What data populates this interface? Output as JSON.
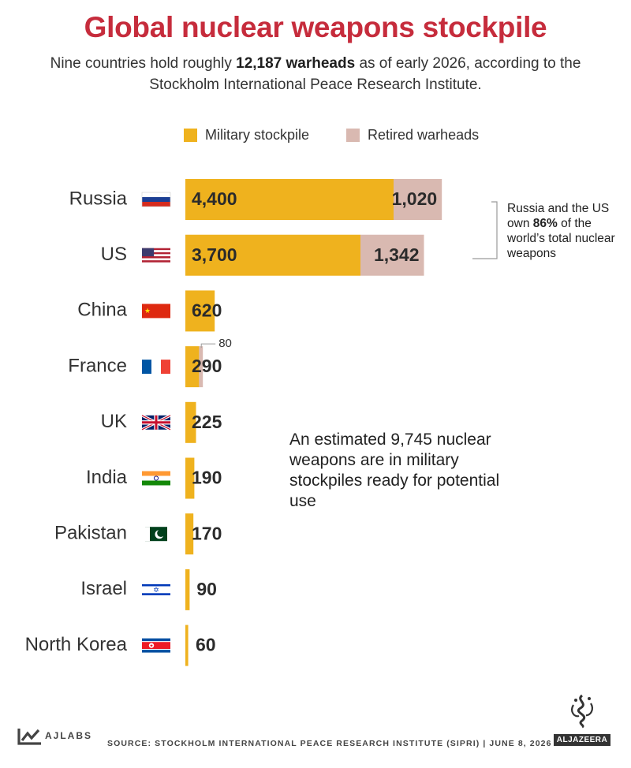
{
  "header": {
    "title": "Global nuclear weapons stockpile",
    "subtitle_prefix": "Nine countries hold roughly ",
    "subtitle_bold": "12,187 warheads",
    "subtitle_suffix": " as of early 2026, according to the Stockholm International Peace Research Institute."
  },
  "legend": {
    "military_label": "Military stockpile",
    "retired_label": "Retired warheads"
  },
  "colors": {
    "title": "#c62c3c",
    "military": "#efb21e",
    "retired": "#d9b9b1",
    "text": "#2b2b2b"
  },
  "chart_data": {
    "type": "bar",
    "orientation": "horizontal",
    "stacked": true,
    "categories": [
      "Russia",
      "US",
      "China",
      "France",
      "UK",
      "India",
      "Pakistan",
      "Israel",
      "North Korea"
    ],
    "flags": [
      "russia-flag",
      "us-flag",
      "china-flag",
      "france-flag",
      "uk-flag",
      "india-flag",
      "pakistan-flag",
      "israel-flag",
      "north-korea-flag"
    ],
    "series": [
      {
        "name": "Military stockpile",
        "values": [
          4400,
          3700,
          620,
          290,
          225,
          190,
          170,
          90,
          60
        ]
      },
      {
        "name": "Retired warheads",
        "values": [
          1020,
          1342,
          0,
          80,
          0,
          0,
          0,
          0,
          0
        ]
      }
    ],
    "value_labels": {
      "military": [
        "4,400",
        "3,700",
        "620",
        "290",
        "225",
        "190",
        "170",
        "90",
        "60"
      ],
      "retired": [
        "1,020",
        "1,342",
        "",
        "80",
        "",
        "",
        "",
        "",
        ""
      ]
    },
    "legend_position": "top",
    "grid": false
  },
  "annotations": {
    "us_russia_prefix": "Russia and the US own ",
    "us_russia_bold": "86%",
    "us_russia_suffix": " of the world’s total nuclear weapons",
    "military_note": "An estimated 9,745 nuclear weapons are in military stockpiles ready for potential use"
  },
  "footer": {
    "brand": "AJLABS",
    "source": "SOURCE: STOCKHOLM INTERNATIONAL PEACE RESEARCH INSTITUTE (SIPRI)  |  JUNE 8, 2026",
    "logo_text": "ALJAZEERA"
  }
}
